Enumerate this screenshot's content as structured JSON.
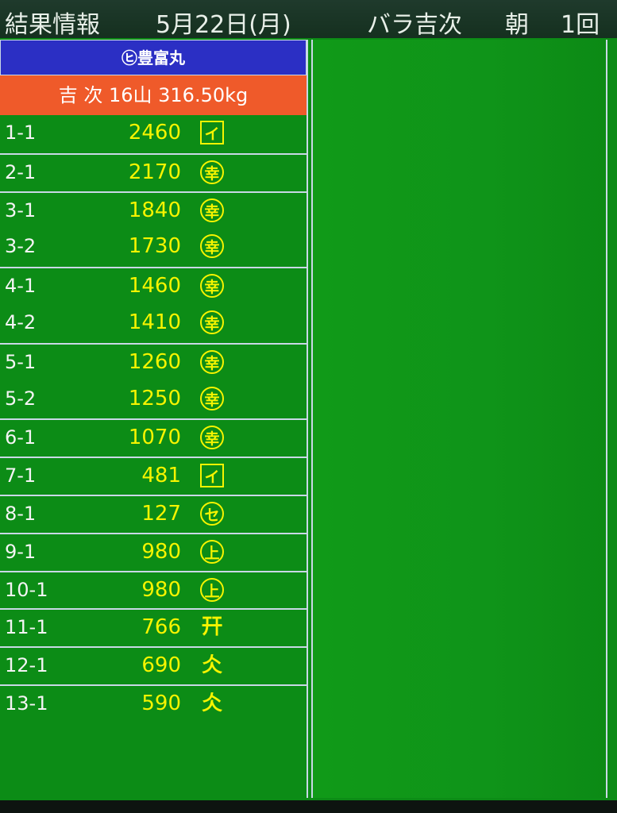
{
  "header": {
    "title": "結果情報",
    "date": "5月22日(月)",
    "item": "バラ吉次",
    "session": "朝",
    "round": "1回"
  },
  "ship": "㋪豊富丸",
  "summary": "吉 次 16山 316.50kg",
  "rows": [
    {
      "lot": "1-1",
      "price": 2460,
      "mark": "イ",
      "frame": "box"
    },
    {
      "lot": "2-1",
      "price": 2170,
      "mark": "幸",
      "frame": "circle"
    },
    {
      "lot": "3-1",
      "price": 1840,
      "mark": "幸",
      "frame": "circle"
    },
    {
      "lot": "3-2",
      "price": 1730,
      "mark": "幸",
      "frame": "circle"
    },
    {
      "lot": "4-1",
      "price": 1460,
      "mark": "幸",
      "frame": "circle"
    },
    {
      "lot": "4-2",
      "price": 1410,
      "mark": "幸",
      "frame": "circle"
    },
    {
      "lot": "5-1",
      "price": 1260,
      "mark": "幸",
      "frame": "circle"
    },
    {
      "lot": "5-2",
      "price": 1250,
      "mark": "幸",
      "frame": "circle"
    },
    {
      "lot": "6-1",
      "price": 1070,
      "mark": "幸",
      "frame": "circle"
    },
    {
      "lot": "7-1",
      "price": 481,
      "mark": "イ",
      "frame": "box"
    },
    {
      "lot": "8-1",
      "price": 127,
      "mark": "セ",
      "frame": "circle"
    },
    {
      "lot": "9-1",
      "price": 980,
      "mark": "上",
      "frame": "circle"
    },
    {
      "lot": "10-1",
      "price": 980,
      "mark": "上",
      "frame": "circle"
    },
    {
      "lot": "11-1",
      "price": 766,
      "mark": "幵",
      "frame": "none"
    },
    {
      "lot": "12-1",
      "price": 690,
      "mark": "仌",
      "frame": "none"
    },
    {
      "lot": "13-1",
      "price": 590,
      "mark": "仌",
      "frame": "none"
    }
  ]
}
